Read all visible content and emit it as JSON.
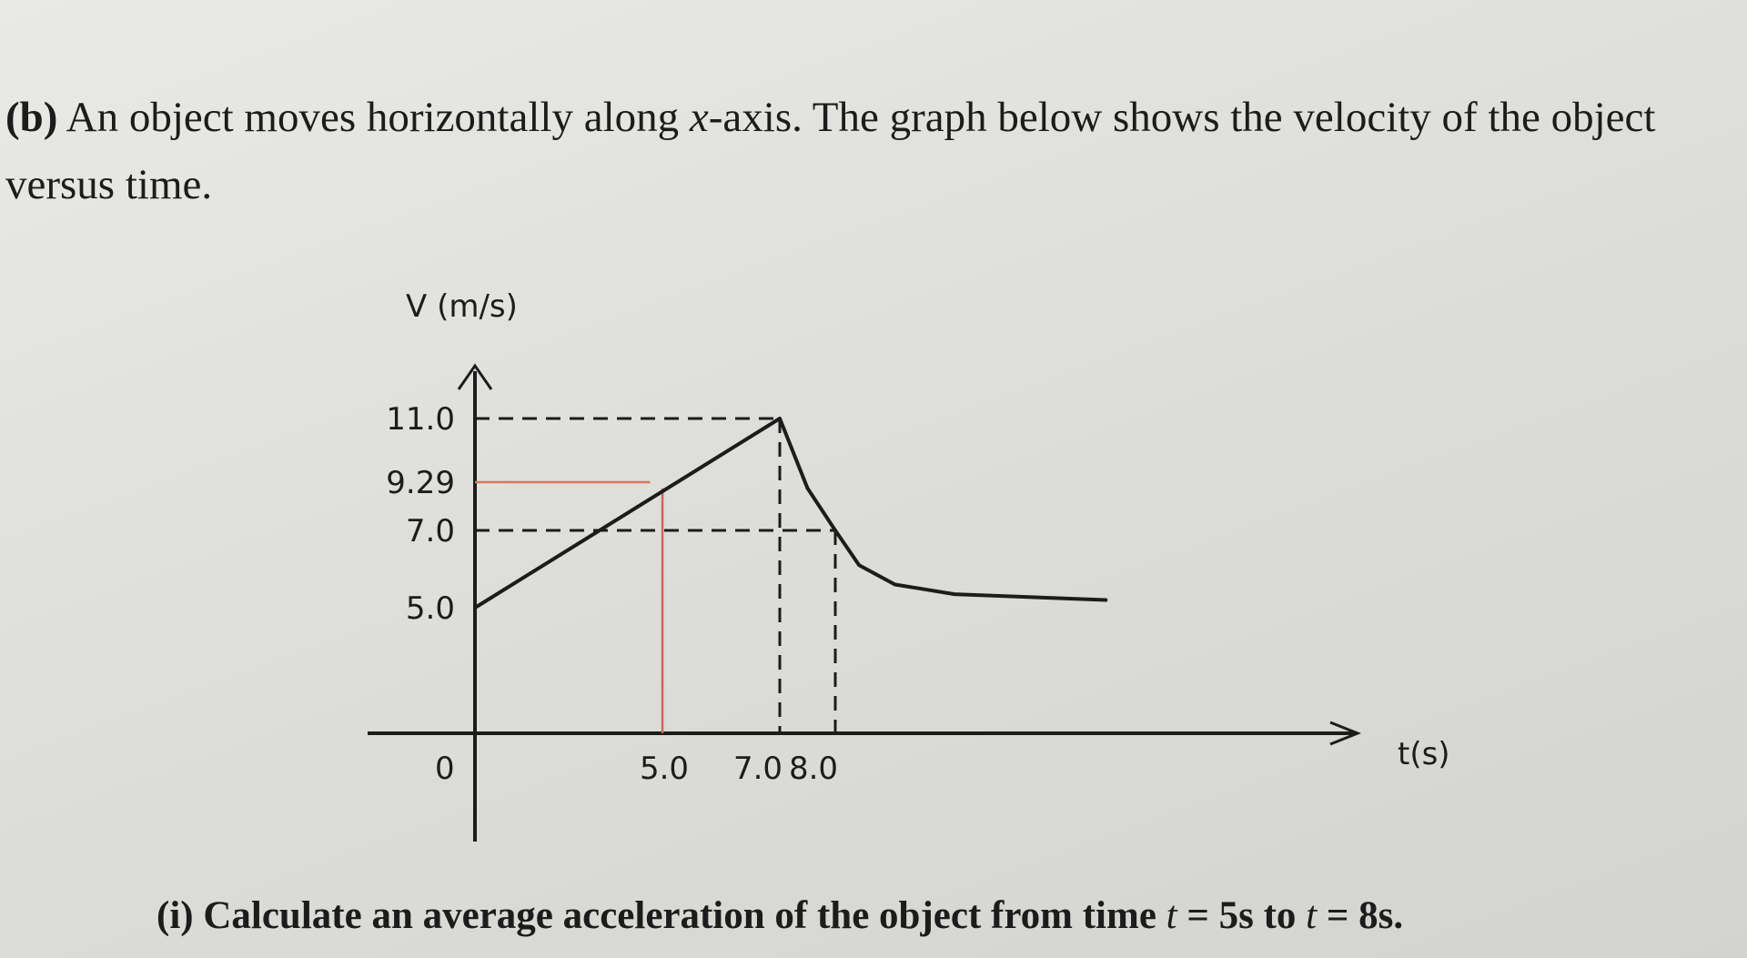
{
  "problem": {
    "label": "(b)",
    "text_before": "An object moves horizontally along ",
    "axis_word": "x",
    "text_after": "-axis. The graph below shows the velocity of the object versus time."
  },
  "question": {
    "label": "(i)",
    "text": "Calculate an average acceleration of the object from time",
    "t_var": "t",
    "from": "= 5s to",
    "t_var2": "t",
    "to": "= 8s."
  },
  "chart_data": {
    "type": "line",
    "ylabel": "V (m/s)",
    "xlabel": "t(s)",
    "origin_label": "0",
    "x_tick_labels": [
      "5.0",
      "7.0",
      "8.0"
    ],
    "y_tick_labels": [
      "11.0",
      "9.29",
      "7.0",
      "5.0"
    ],
    "x_ticks": [
      5.0,
      7.0,
      8.0
    ],
    "y_ticks": [
      11.0,
      9.29,
      7.0,
      5.0
    ],
    "series": [
      {
        "points": [
          [
            0,
            5.0
          ],
          [
            7.0,
            11.0
          ],
          [
            7.5,
            9.0
          ],
          [
            8.0,
            7.0
          ],
          [
            8.6,
            6.1
          ],
          [
            9.5,
            5.6
          ],
          [
            11.0,
            5.35
          ],
          [
            14.8,
            5.2
          ]
        ]
      }
    ],
    "guides": [
      {
        "style": "dashed",
        "color": "#1c1c1c",
        "from": [
          0,
          11.0
        ],
        "to": [
          7.0,
          11.0
        ]
      },
      {
        "style": "dashed",
        "color": "#1c1c1c",
        "from": [
          7.0,
          11.0
        ],
        "to": [
          7.0,
          0
        ]
      },
      {
        "style": "dashed",
        "color": "#1c1c1c",
        "from": [
          0,
          7.0
        ],
        "to": [
          8.0,
          7.0
        ]
      },
      {
        "style": "dashed",
        "color": "#1c1c1c",
        "from": [
          8.0,
          7.0
        ],
        "to": [
          8.0,
          0
        ]
      },
      {
        "style": "solid",
        "color": "#d67a5e",
        "from": [
          0,
          9.29
        ],
        "to": [
          4.3,
          9.29
        ]
      },
      {
        "style": "solid",
        "color": "#c96a55",
        "from": [
          4.6,
          9.0
        ],
        "to": [
          4.6,
          0
        ]
      }
    ],
    "colors": {
      "line": "#1c1c1c",
      "annotation": "#d67a5e"
    }
  }
}
